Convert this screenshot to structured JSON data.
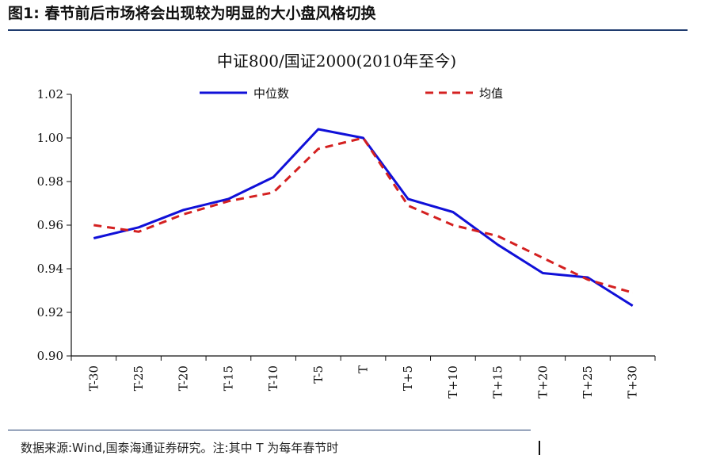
{
  "figure": {
    "label": "图1:",
    "caption": "春节前后市场将会出现较为明显的大小盘风格切换"
  },
  "source_note": "数据来源:Wind,国泰海通证券研究。注:其中 T 为每年春节时",
  "chart_data": {
    "type": "line",
    "title": "中证800/国证2000(2010年至今)",
    "xlabel": "",
    "ylabel": "",
    "categories": [
      "T-30",
      "T-25",
      "T-20",
      "T-15",
      "T-10",
      "T-5",
      "T",
      "T+5",
      "T+10",
      "T+15",
      "T+20",
      "T+25",
      "T+30"
    ],
    "y_ticks": [
      "0.90",
      "0.92",
      "0.94",
      "0.96",
      "0.98",
      "1.00",
      "1.02"
    ],
    "ylim": [
      0.9,
      1.02
    ],
    "grid": false,
    "legend_position": "top",
    "series": [
      {
        "name": "中位数",
        "style": "solid",
        "color": "#1010d8",
        "x": [
          "T-30",
          "T-25",
          "T-20",
          "T-15",
          "T-10",
          "T-5",
          "T",
          "T+5",
          "T+10",
          "T+15",
          "T+20",
          "T+25",
          "T+30"
        ],
        "values": [
          0.954,
          0.959,
          0.967,
          0.972,
          0.982,
          1.004,
          1.0,
          0.972,
          0.966,
          0.951,
          0.938,
          0.936,
          0.923
        ]
      },
      {
        "name": "均值",
        "style": "dashed",
        "color": "#d42020",
        "x": [
          "T-30",
          "T-25",
          "T-20",
          "T-15",
          "T-10",
          "T-5",
          "T",
          "T+5",
          "T+10",
          "T+15",
          "T+20",
          "T+25",
          "T+30"
        ],
        "values": [
          0.96,
          0.957,
          0.965,
          0.971,
          0.975,
          0.995,
          1.0,
          0.969,
          0.96,
          0.955,
          0.945,
          0.935,
          0.929
        ]
      }
    ]
  }
}
